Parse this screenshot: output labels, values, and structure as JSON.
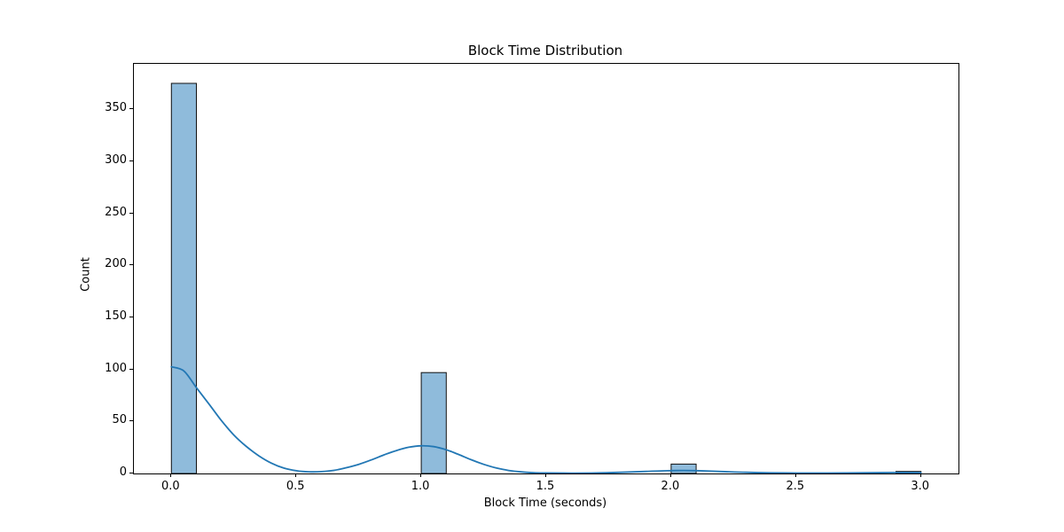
{
  "chart_data": {
    "type": "bar",
    "subtype": "histogram-with-kde",
    "title": "Block Time Distribution",
    "xlabel": "Block Time (seconds)",
    "ylabel": "Count",
    "xlim": [
      -0.15,
      3.15
    ],
    "ylim": [
      0,
      393.75
    ],
    "grid": false,
    "legend_position": "none",
    "x_ticks": [
      0.0,
      0.5,
      1.0,
      1.5,
      2.0,
      2.5,
      3.0
    ],
    "x_tick_labels": [
      "0.0",
      "0.5",
      "1.0",
      "1.5",
      "2.0",
      "2.5",
      "3.0"
    ],
    "y_ticks": [
      0,
      50,
      100,
      150,
      200,
      250,
      300,
      350
    ],
    "y_tick_labels": [
      "0",
      "50",
      "100",
      "150",
      "200",
      "250",
      "300",
      "350"
    ],
    "bin_width": 0.1,
    "bars": [
      {
        "x0": 0.0,
        "x1": 0.1,
        "count": 375
      },
      {
        "x0": 1.0,
        "x1": 1.1,
        "count": 97
      },
      {
        "x0": 2.0,
        "x1": 2.1,
        "count": 9
      },
      {
        "x0": 2.9,
        "x1": 3.0,
        "count": 2
      }
    ],
    "kde_curve": [
      [
        0.0,
        102.5
      ],
      [
        0.05,
        98.5
      ],
      [
        0.1,
        82.5
      ],
      [
        0.15,
        67.0
      ],
      [
        0.2,
        51.0
      ],
      [
        0.25,
        37.0
      ],
      [
        0.3,
        26.0
      ],
      [
        0.35,
        17.0
      ],
      [
        0.4,
        10.0
      ],
      [
        0.45,
        5.2
      ],
      [
        0.5,
        2.6
      ],
      [
        0.55,
        1.6
      ],
      [
        0.6,
        1.8
      ],
      [
        0.65,
        3.0
      ],
      [
        0.7,
        5.5
      ],
      [
        0.75,
        8.8
      ],
      [
        0.8,
        13.0
      ],
      [
        0.85,
        17.8
      ],
      [
        0.9,
        22.0
      ],
      [
        0.95,
        25.2
      ],
      [
        1.0,
        26.6
      ],
      [
        1.05,
        25.8
      ],
      [
        1.1,
        22.8
      ],
      [
        1.15,
        18.2
      ],
      [
        1.2,
        13.2
      ],
      [
        1.25,
        8.8
      ],
      [
        1.3,
        5.3
      ],
      [
        1.35,
        2.9
      ],
      [
        1.4,
        1.5
      ],
      [
        1.45,
        0.8
      ],
      [
        1.5,
        0.5
      ],
      [
        1.6,
        0.3
      ],
      [
        1.7,
        0.5
      ],
      [
        1.8,
        1.1
      ],
      [
        1.9,
        2.0
      ],
      [
        2.0,
        2.7
      ],
      [
        2.05,
        2.9
      ],
      [
        2.1,
        2.7
      ],
      [
        2.2,
        1.9
      ],
      [
        2.3,
        1.1
      ],
      [
        2.4,
        0.6
      ],
      [
        2.5,
        0.4
      ],
      [
        2.6,
        0.4
      ],
      [
        2.7,
        0.5
      ],
      [
        2.8,
        0.7
      ],
      [
        2.9,
        0.9
      ],
      [
        3.0,
        0.8
      ]
    ],
    "colors": {
      "bar_fill": "#8fbbdb",
      "bar_edge": "#111111",
      "kde_line": "#2277b4",
      "spine": "#000000",
      "text": "#000000",
      "background": "#ffffff"
    }
  }
}
